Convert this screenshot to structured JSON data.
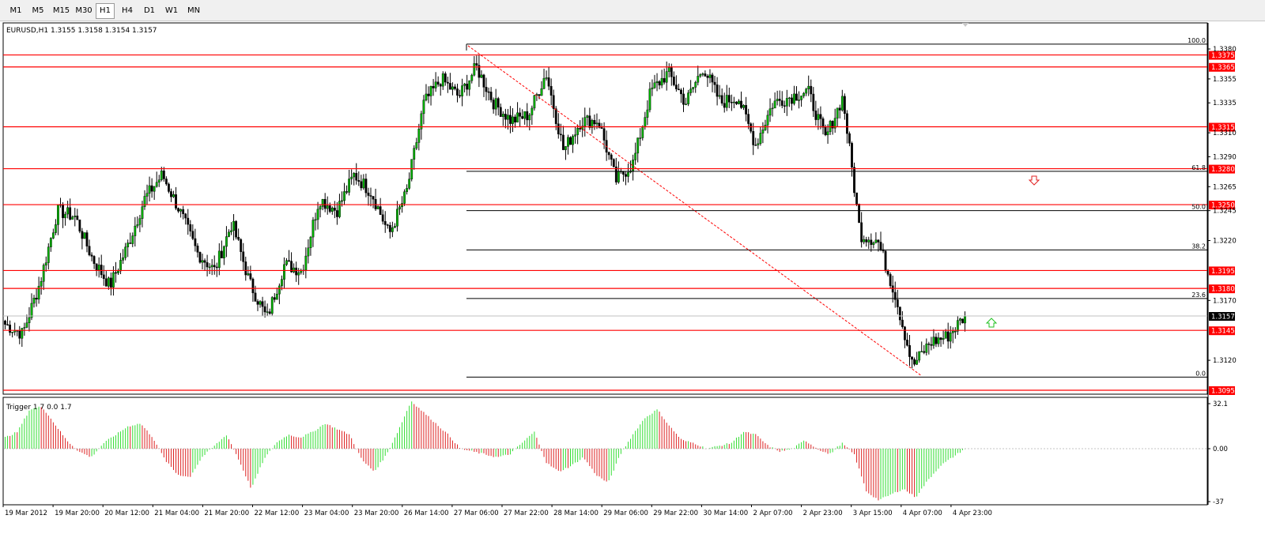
{
  "toolbar": {
    "timeframes": [
      "M1",
      "M5",
      "M15",
      "M30",
      "H1",
      "H4",
      "D1",
      "W1",
      "MN"
    ],
    "active": "H1"
  },
  "chart": {
    "symbol_info": "EURUSD,H1  1.3155 1.3158 1.3154 1.3157",
    "indicator_info": "Trigger 1.7 0.0 1.7",
    "colors": {
      "bull": "#00b000",
      "bear": "#000000",
      "level": "#ff0000",
      "fib": "#000000",
      "trend": "#ff0000",
      "hist_up": "#33dd33",
      "hist_down": "#dd2222"
    }
  },
  "chart_data": [
    {
      "type": "candlestick",
      "symbol": "EURUSD",
      "timeframe": "H1",
      "last_bar": {
        "open": 1.3155,
        "high": 1.3158,
        "low": 1.3154,
        "close": 1.3157
      },
      "ylim": [
        1.309,
        1.339
      ],
      "price_ticks": [
        "1.3380",
        "1.3355",
        "1.3335",
        "1.3310",
        "1.3290",
        "1.3265",
        "1.3245",
        "1.3220",
        "1.3170",
        "1.3120"
      ],
      "horizontal_levels": [
        1.3375,
        1.3365,
        1.3315,
        1.328,
        1.325,
        1.3195,
        1.318,
        1.3145,
        1.3095
      ],
      "level_labels": [
        "1.3375",
        "1.3365",
        "1.3315",
        "1.3280",
        "1.3250",
        "1.3195",
        "1.3180",
        "1.3145",
        "1.3095"
      ],
      "current_price": 1.3157,
      "current_price_label": "1.3157",
      "fibonacci": {
        "high": 1.3384,
        "low": 1.3106,
        "levels": [
          "100.0",
          "61.8",
          "50.0",
          "38.2",
          "23.6",
          "0.0"
        ]
      },
      "x_labels": [
        "19 Mar 2012",
        "19 Mar 20:00",
        "20 Mar 12:00",
        "21 Mar 04:00",
        "21 Mar 20:00",
        "22 Mar 12:00",
        "23 Mar 04:00",
        "23 Mar 20:00",
        "26 Mar 14:00",
        "27 Mar 06:00",
        "27 Mar 22:00",
        "28 Mar 14:00",
        "29 Mar 06:00",
        "29 Mar 22:00",
        "30 Mar 14:00",
        "2 Apr 07:00",
        "2 Apr 23:00",
        "3 Apr 15:00",
        "4 Apr 07:00",
        "4 Apr 23:00"
      ],
      "key_points": [
        1.315,
        1.3142,
        1.3185,
        1.3245,
        1.324,
        1.3205,
        1.3182,
        1.3215,
        1.3255,
        1.3275,
        1.3245,
        1.321,
        1.3195,
        1.3235,
        1.3185,
        1.3155,
        1.32,
        1.3195,
        1.3255,
        1.3245,
        1.3275,
        1.326,
        1.3225,
        1.326,
        1.3335,
        1.3355,
        1.334,
        1.3365,
        1.3335,
        1.332,
        1.3325,
        1.336,
        1.3295,
        1.332,
        1.332,
        1.327,
        1.3285,
        1.3345,
        1.336,
        1.3335,
        1.3365,
        1.3335,
        1.334,
        1.33,
        1.3335,
        1.334,
        1.3345,
        1.3305,
        1.334,
        1.3225,
        1.322,
        1.3175,
        1.3115,
        1.3135,
        1.314,
        1.3157
      ]
    },
    {
      "type": "histogram",
      "name": "Trigger 1.7 0.0 1.7",
      "y_ticks": [
        "32.1",
        "0.00",
        "-37"
      ],
      "ylim": [
        -37,
        32.1
      ],
      "key_points": [
        8,
        12,
        28,
        30,
        18,
        6,
        -2,
        -6,
        4,
        10,
        16,
        18,
        8,
        -8,
        -18,
        -20,
        -6,
        2,
        10,
        -8,
        -28,
        -8,
        4,
        10,
        8,
        12,
        18,
        14,
        10,
        -8,
        -16,
        -4,
        14,
        34,
        26,
        18,
        10,
        0,
        -2,
        -4,
        -6,
        -4,
        4,
        12,
        -10,
        -16,
        -12,
        -6,
        -18,
        -24,
        -4,
        10,
        22,
        28,
        16,
        6,
        4,
        0,
        2,
        4,
        12,
        10,
        2,
        -2,
        0,
        6,
        0,
        -4,
        4,
        -4,
        -30,
        -36,
        -32,
        -28,
        -34,
        -22,
        -12,
        -6,
        0
      ]
    }
  ]
}
